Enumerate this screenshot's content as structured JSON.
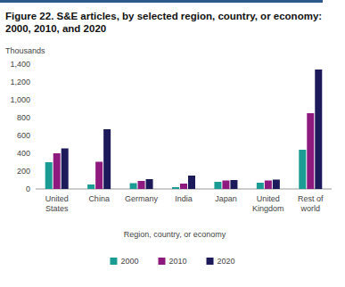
{
  "chart_data": {
    "type": "bar",
    "title": "Figure 22. S&E articles, by selected region, country, or economy: 2000, 2010, and 2020",
    "y_label": "Thousands",
    "x_label": "Region, country, or economy",
    "categories": [
      "United States",
      "China",
      "Germany",
      "India",
      "Japan",
      "United Kingdom",
      "Rest of world"
    ],
    "series": [
      {
        "name": "2000",
        "color": "#1a9c95",
        "values": [
          300,
          50,
          65,
          20,
          80,
          70,
          440
        ]
      },
      {
        "name": "2010",
        "color": "#8e1a80",
        "values": [
          400,
          305,
          90,
          60,
          95,
          95,
          850
        ]
      },
      {
        "name": "2020",
        "color": "#1c1a5a",
        "values": [
          455,
          670,
          110,
          150,
          100,
          105,
          1340
        ]
      }
    ],
    "ylim": [
      0,
      1400
    ],
    "yticks": [
      0,
      200,
      400,
      600,
      800,
      {
        "value": 1000,
        "label": "1,000"
      },
      {
        "value": 1200,
        "label": "1,200"
      },
      {
        "value": 1400,
        "label": "1,400"
      }
    ],
    "grid": false,
    "legend": "bottom"
  }
}
